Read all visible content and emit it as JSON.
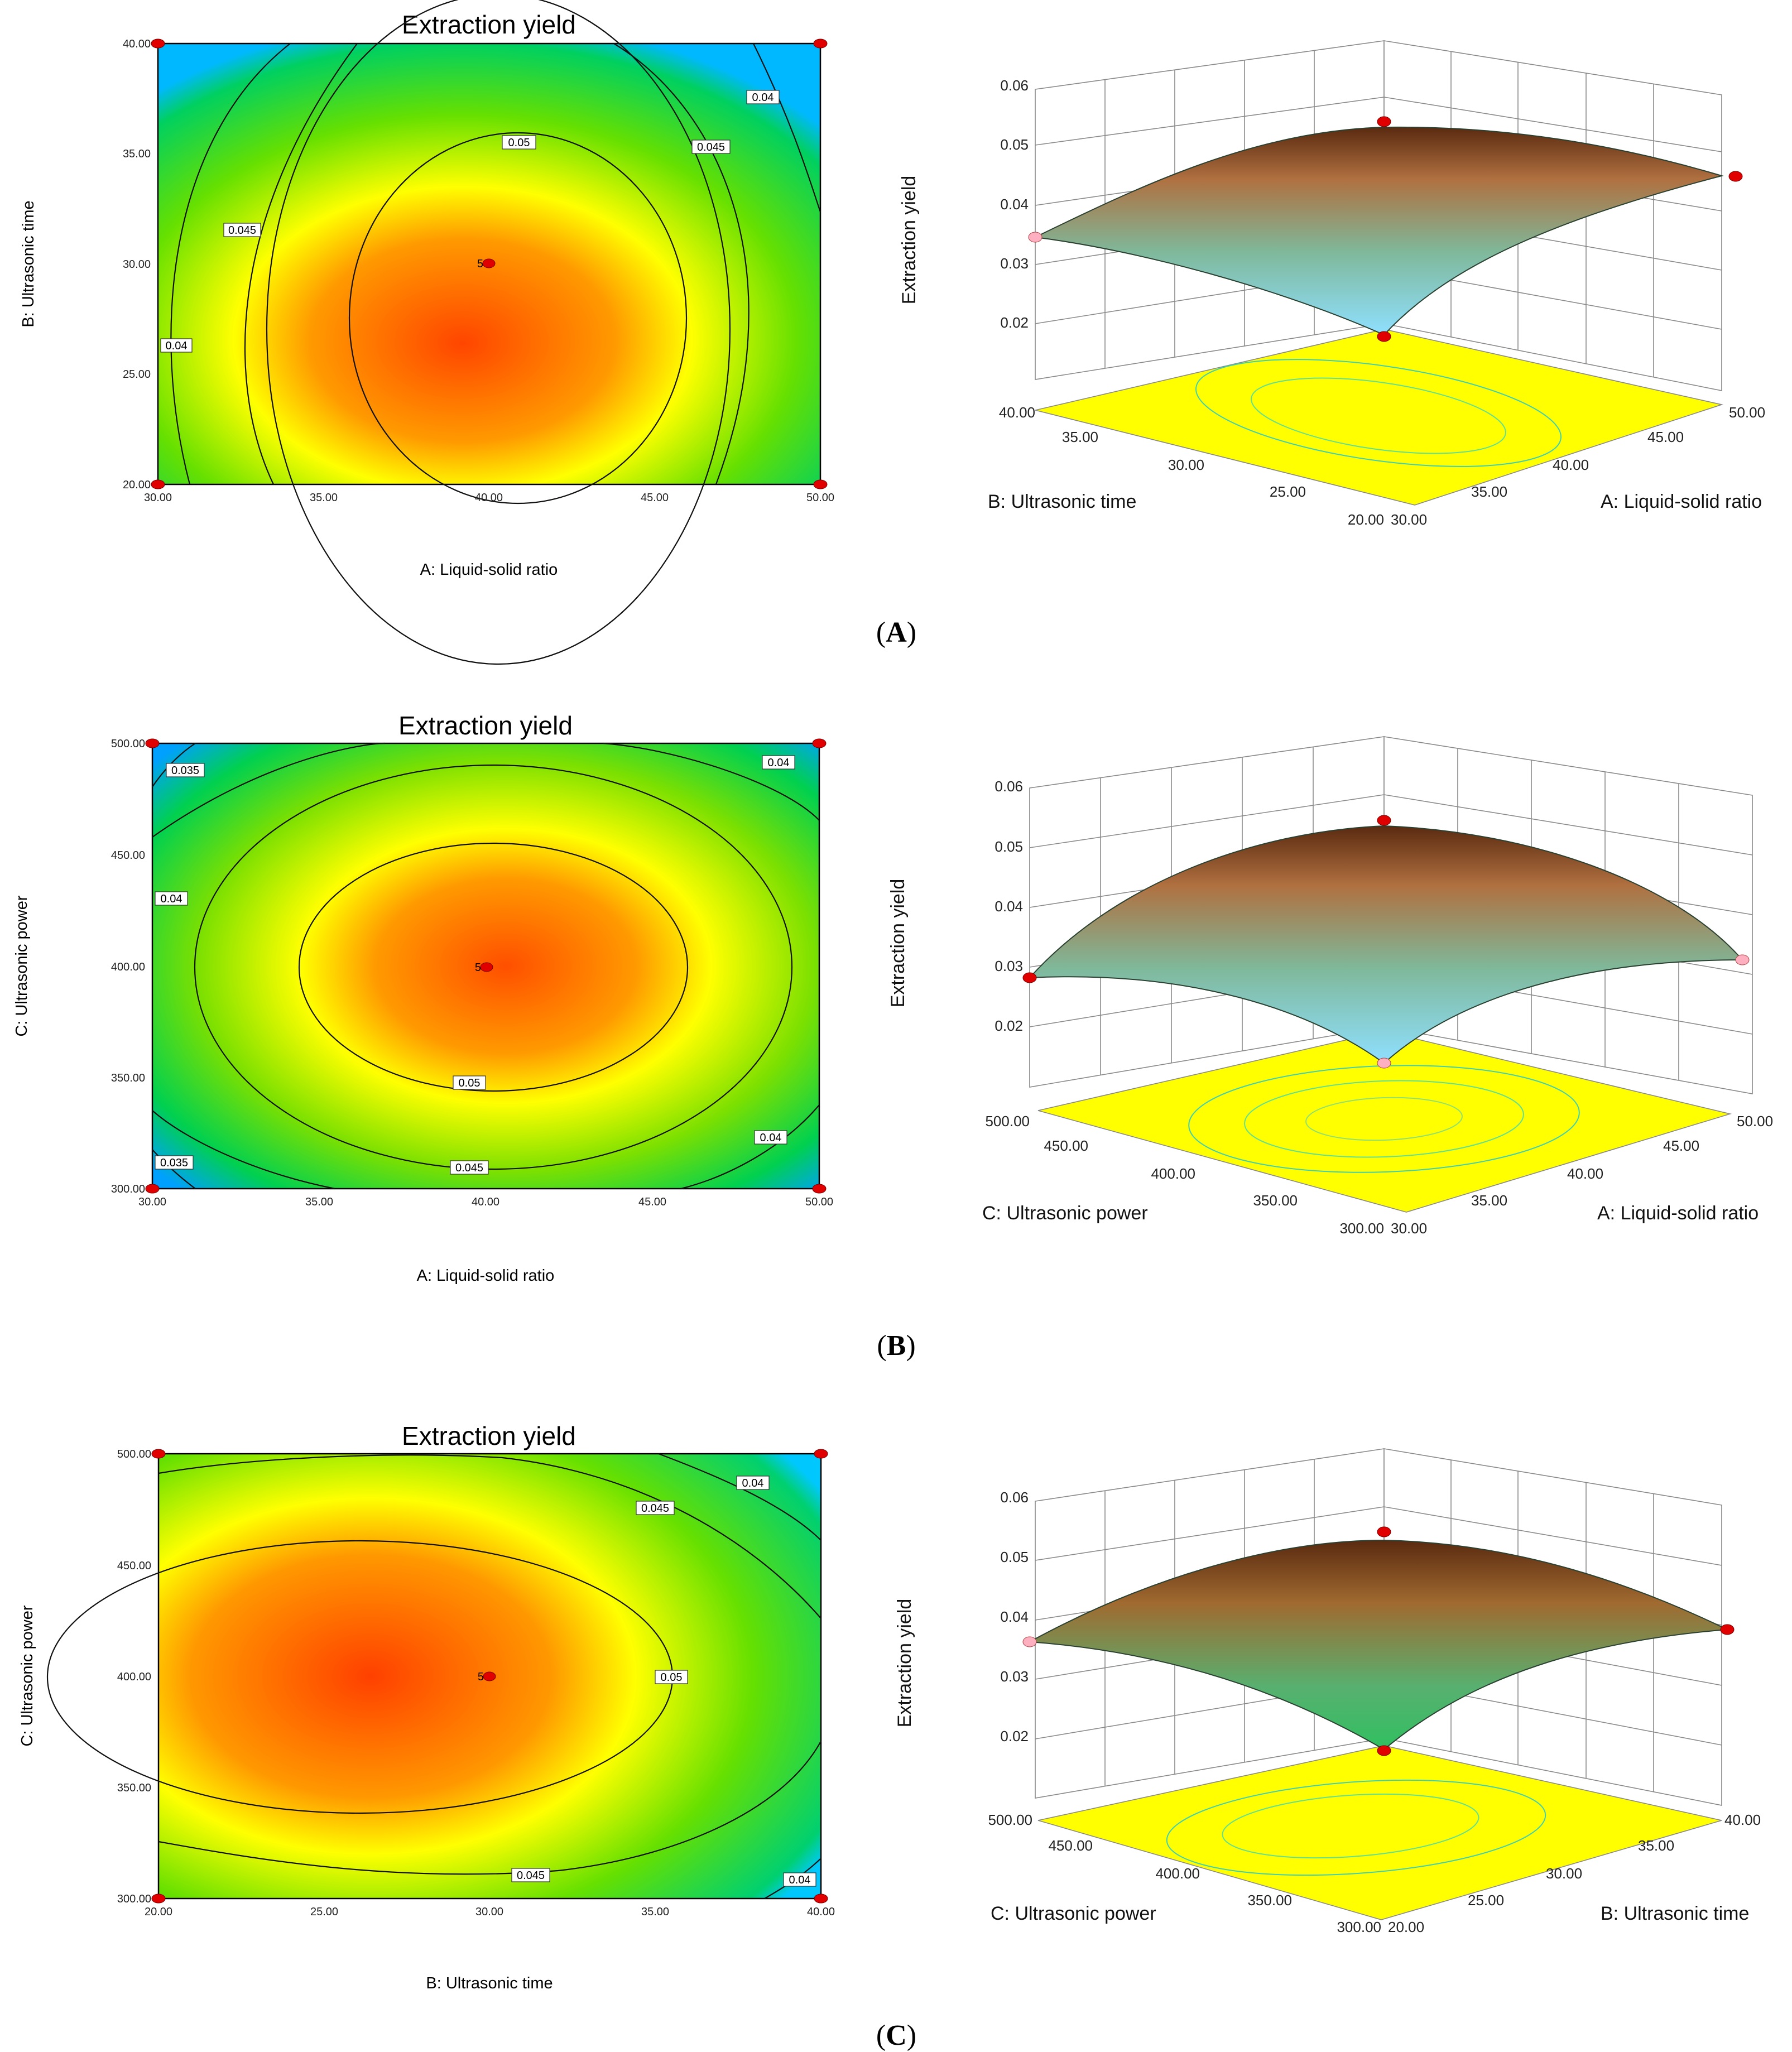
{
  "figure": {
    "panels": [
      {
        "id": "A",
        "caption_letter": "A"
      },
      {
        "id": "B",
        "caption_letter": "B"
      },
      {
        "id": "C",
        "caption_letter": "C"
      }
    ],
    "colors": {
      "high": "#ff4500",
      "mid": "#ffff00",
      "low": "#00d000",
      "min": "#1060ff",
      "floor": "#ffff00",
      "design_point": "#e00000"
    }
  },
  "chart_data": [
    {
      "panel": "A",
      "type": "heatmap",
      "title": "Extraction yield",
      "xlabel": "A: Liquid-solid ratio",
      "ylabel": "B: Ultrasonic time",
      "xlim": [
        30,
        50
      ],
      "ylim": [
        20,
        40
      ],
      "xticks": [
        "30.00",
        "35.00",
        "40.00",
        "45.00",
        "50.00"
      ],
      "yticks": [
        "20.00",
        "25.00",
        "30.00",
        "35.00",
        "40.00"
      ],
      "contour_labels": [
        {
          "text": "0.04",
          "x": 30.5,
          "y": 26.5
        },
        {
          "text": "0.045",
          "x": 32.5,
          "y": 31.5
        },
        {
          "text": "0.05",
          "x": 41,
          "y": 35.5
        },
        {
          "text": "0.045",
          "x": 46.8,
          "y": 35.3
        },
        {
          "text": "0.04",
          "x": 48.3,
          "y": 37.7
        }
      ],
      "center_point": {
        "label": "5",
        "x": 40,
        "y": 30
      },
      "corner_points": [
        [
          30,
          20
        ],
        [
          30,
          40
        ],
        [
          50,
          20
        ],
        [
          50,
          40
        ]
      ]
    },
    {
      "panel": "A",
      "type": "surface3d",
      "zlabel": "Extraction yield",
      "zticks": [
        "0.02",
        "0.03",
        "0.04",
        "0.05",
        "0.06"
      ],
      "xlabel": "A: Liquid-solid ratio",
      "ylabel": "B: Ultrasonic time",
      "xticks": [
        "30.00",
        "35.00",
        "40.00",
        "45.00",
        "50.00"
      ],
      "yticks": [
        "20.00",
        "25.00",
        "30.00",
        "35.00",
        "40.00"
      ]
    },
    {
      "panel": "B",
      "type": "heatmap",
      "title": "Extraction yield",
      "xlabel": "A: Liquid-solid ratio",
      "ylabel": "C: Ultrasonic power",
      "xlim": [
        30,
        50
      ],
      "ylim": [
        300,
        500
      ],
      "xticks": [
        "30.00",
        "35.00",
        "40.00",
        "45.00",
        "50.00"
      ],
      "yticks": [
        "300.00",
        "350.00",
        "400.00",
        "450.00",
        "500.00"
      ],
      "contour_labels": [
        {
          "text": "0.035",
          "x": 31.2,
          "y": 490
        },
        {
          "text": "0.04",
          "x": 30.5,
          "y": 430
        },
        {
          "text": "0.04",
          "x": 48.8,
          "y": 492
        },
        {
          "text": "0.05",
          "x": 39.5,
          "y": 348
        },
        {
          "text": "0.045",
          "x": 39.5,
          "y": 310
        },
        {
          "text": "0.04",
          "x": 48.7,
          "y": 324
        },
        {
          "text": "0.035",
          "x": 30.6,
          "y": 312
        }
      ],
      "center_point": {
        "label": "5",
        "x": 40,
        "y": 400
      },
      "corner_points": [
        [
          30,
          300
        ],
        [
          30,
          500
        ],
        [
          50,
          300
        ],
        [
          50,
          500
        ]
      ]
    },
    {
      "panel": "B",
      "type": "surface3d",
      "zlabel": "Extraction yield",
      "zticks": [
        "0.02",
        "0.03",
        "0.04",
        "0.05",
        "0.06"
      ],
      "xlabel": "A: Liquid-solid ratio",
      "ylabel": "C: Ultrasonic power",
      "xticks": [
        "30.00",
        "35.00",
        "40.00",
        "45.00",
        "50.00"
      ],
      "yticks": [
        "300.00",
        "350.00",
        "400.00",
        "450.00",
        "500.00"
      ]
    },
    {
      "panel": "C",
      "type": "heatmap",
      "title": "Extraction yield",
      "xlabel": "B: Ultrasonic time",
      "ylabel": "C: Ultrasonic power",
      "xlim": [
        20,
        40
      ],
      "ylim": [
        300,
        500
      ],
      "xticks": [
        "20.00",
        "25.00",
        "30.00",
        "35.00",
        "40.00"
      ],
      "yticks": [
        "300.00",
        "350.00",
        "400.00",
        "450.00",
        "500.00"
      ],
      "contour_labels": [
        {
          "text": "0.04",
          "x": 38,
          "y": 490
        },
        {
          "text": "0.045",
          "x": 35,
          "y": 472
        },
        {
          "text": "0.05",
          "x": 35.4,
          "y": 400
        },
        {
          "text": "0.045",
          "x": 31.3,
          "y": 310
        },
        {
          "text": "0.04",
          "x": 39.2,
          "y": 308
        }
      ],
      "center_point": {
        "label": "5",
        "x": 30,
        "y": 400
      },
      "corner_points": [
        [
          20,
          300
        ],
        [
          20,
          500
        ],
        [
          40,
          300
        ],
        [
          40,
          500
        ]
      ]
    },
    {
      "panel": "C",
      "type": "surface3d",
      "zlabel": "Extraction yield",
      "zticks": [
        "0.02",
        "0.03",
        "0.04",
        "0.05",
        "0.06"
      ],
      "xlabel": "B: Ultrasonic time",
      "ylabel": "C: Ultrasonic power",
      "xticks": [
        "20.00",
        "25.00",
        "30.00",
        "35.00",
        "40.00"
      ],
      "yticks": [
        "300.00",
        "350.00",
        "400.00",
        "450.00",
        "500.00"
      ]
    }
  ]
}
